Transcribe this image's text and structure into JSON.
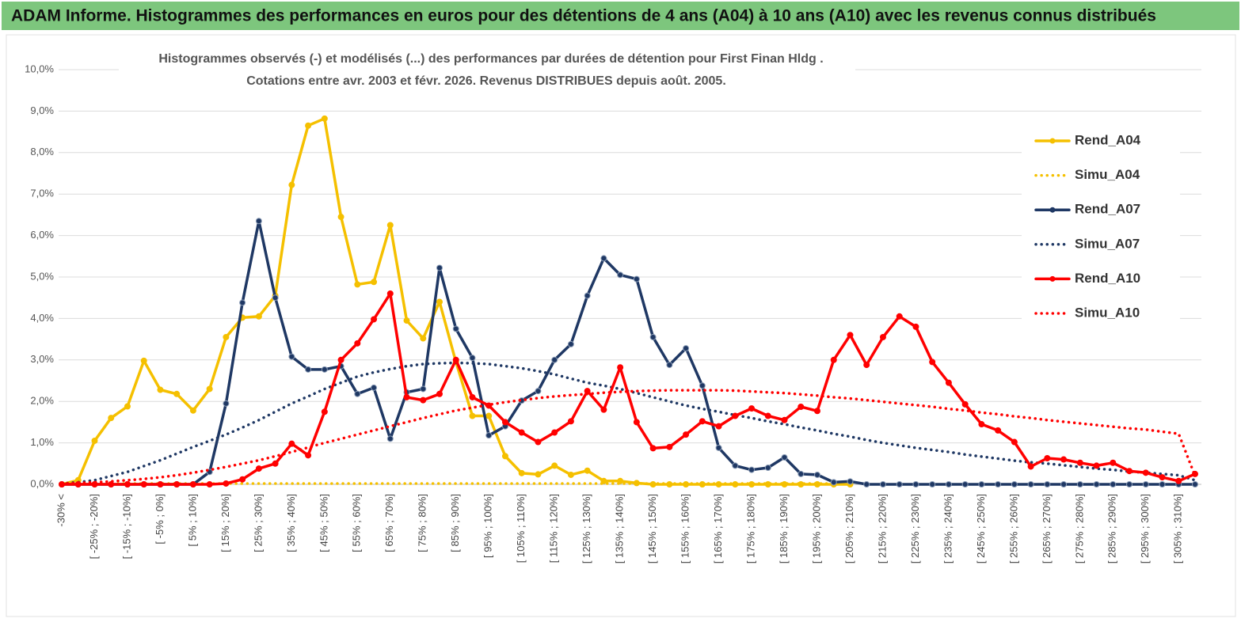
{
  "header": {
    "title": "ADAM Informe. Histogrammes des performances en euros pour des détentions de 4 ans (A04) à 10 ans (A10) avec les revenus connus distribués"
  },
  "chart_data": {
    "type": "line",
    "title": "Histogrammes observés (-) et modélisés (...) des performances par durées de détention pour First Finan Hldg .",
    "subtitle": "Cotations entre avr. 2003 et févr. 2026. Revenus DISTRIBUES depuis août. 2005.",
    "categories": [
      "-30% <",
      null,
      "[ -25% ; -20%]",
      null,
      "[ -15% ; -10%]",
      null,
      "[ -5% ; 0%]",
      null,
      "[ 5% ; 10%]",
      null,
      "[ 15% ; 20%]",
      null,
      "[ 25% ; 30%]",
      null,
      "[ 35% ; 40%]",
      null,
      "[ 45% ; 50%]",
      null,
      "[ 55% ; 60%]",
      null,
      "[ 65% ; 70%]",
      null,
      "[ 75% ; 80%]",
      null,
      "[ 85% ; 90%]",
      null,
      "[ 95% ; 100%]",
      null,
      "[ 105% ; 110%]",
      null,
      "[ 115% ; 120%]",
      null,
      "[ 125% ; 130%]",
      null,
      "[ 135% ; 140%]",
      null,
      "[ 145% ; 150%]",
      null,
      "[ 155% ; 160%]",
      null,
      "[ 165% ; 170%]",
      null,
      "[ 175% ; 180%]",
      null,
      "[ 185% ; 190%]",
      null,
      "[ 195% ; 200%]",
      null,
      "[ 205% ; 210%]",
      null,
      "[ 215% ; 220%]",
      null,
      "[ 225% ; 230%]",
      null,
      "[ 235% ; 240%]",
      null,
      "[ 245% ; 250%]",
      null,
      "[ 255% ; 260%]",
      null,
      "[ 265% ; 270%]",
      null,
      "[ 275% ; 280%]",
      null,
      "[ 285% ; 290%]",
      null,
      "[ 295% ; 300%]",
      null,
      "[ 305% ; 310%]",
      null
    ],
    "series": [
      {
        "name": "Rend_A04",
        "color": "#f5c000",
        "style": "solid",
        "markers": true,
        "values": [
          0,
          0.1,
          1.05,
          1.6,
          1.88,
          2.98,
          2.28,
          2.18,
          1.78,
          2.3,
          3.55,
          4.02,
          4.05,
          4.55,
          7.22,
          8.65,
          8.82,
          6.45,
          4.82,
          4.88,
          6.25,
          3.95,
          3.52,
          4.4,
          2.95,
          1.65,
          1.65,
          0.68,
          0.27,
          0.24,
          0.45,
          0.23,
          0.33,
          0.08,
          0.08,
          0.03,
          0,
          0,
          0,
          0,
          0,
          0,
          0,
          0,
          0,
          0,
          0,
          0,
          0,
          null,
          null,
          null,
          null,
          null,
          null,
          null,
          null,
          null,
          null,
          null,
          null,
          null,
          null,
          null,
          null,
          null,
          null,
          null,
          null,
          null
        ]
      },
      {
        "name": "Simu_A04",
        "color": "#f5c000",
        "style": "dotted",
        "markers": false,
        "values": [
          0.02,
          0.02,
          0.02,
          0.02,
          0.02,
          0.02,
          0.02,
          0.02,
          0.02,
          0.02,
          0.02,
          0.02,
          0.02,
          0.02,
          0.02,
          0.02,
          0.02,
          0.02,
          0.02,
          0.02,
          0.02,
          0.02,
          0.02,
          0.02,
          0.02,
          0.02,
          0.02,
          0.02,
          0.02,
          0.02,
          0.02,
          0.02,
          0.02,
          0.02,
          0.02,
          0.02,
          0.02,
          0.02,
          0.02,
          0.02,
          0.02,
          0.02,
          0.02,
          0.02,
          0.02,
          0.02,
          0.02,
          0.02,
          0.02,
          null,
          null,
          null,
          null,
          null,
          null,
          null,
          null,
          null,
          null,
          null,
          null,
          null,
          null,
          null,
          null,
          null,
          null,
          null,
          null,
          null
        ]
      },
      {
        "name": "Rend_A07",
        "color": "#1f3864",
        "style": "solid",
        "markers": true,
        "values": [
          0,
          0,
          0,
          0,
          0,
          0,
          0,
          0,
          0,
          0.3,
          1.95,
          4.38,
          6.35,
          4.5,
          3.08,
          2.77,
          2.77,
          2.85,
          2.18,
          2.33,
          1.1,
          2.22,
          2.3,
          5.22,
          3.75,
          3.05,
          1.18,
          1.4,
          2.02,
          2.25,
          3.0,
          3.38,
          4.55,
          5.45,
          5.05,
          4.95,
          3.55,
          2.88,
          3.28,
          2.38,
          0.88,
          0.45,
          0.35,
          0.4,
          0.65,
          0.25,
          0.23,
          0.05,
          0.07,
          0,
          0,
          0,
          0,
          0,
          0,
          0,
          0,
          0,
          0,
          0,
          0,
          0,
          0,
          0,
          0,
          0,
          0,
          0,
          0,
          0
        ]
      },
      {
        "name": "Simu_A07",
        "color": "#1f3864",
        "style": "dotted",
        "markers": false,
        "values": [
          0.02,
          0.05,
          0.1,
          0.2,
          0.3,
          0.44,
          0.58,
          0.74,
          0.9,
          1.05,
          1.2,
          1.37,
          1.55,
          1.75,
          1.95,
          2.12,
          2.3,
          2.45,
          2.6,
          2.7,
          2.78,
          2.85,
          2.9,
          2.92,
          2.93,
          2.92,
          2.9,
          2.85,
          2.8,
          2.73,
          2.65,
          2.55,
          2.45,
          2.38,
          2.3,
          2.2,
          2.1,
          2.0,
          1.9,
          1.82,
          1.75,
          1.67,
          1.6,
          1.52,
          1.45,
          1.37,
          1.3,
          1.22,
          1.15,
          1.07,
          1.0,
          0.94,
          0.88,
          0.83,
          0.78,
          0.72,
          0.67,
          0.62,
          0.57,
          0.53,
          0.5,
          0.46,
          0.42,
          0.38,
          0.35,
          0.31,
          0.28,
          0.25,
          0.22,
          0.1
        ]
      },
      {
        "name": "Rend_A10",
        "color": "#ff0000",
        "style": "solid",
        "markers": true,
        "values": [
          0,
          0,
          0,
          0,
          0,
          0,
          0,
          0,
          0,
          0,
          0.02,
          0.12,
          0.38,
          0.5,
          0.98,
          0.7,
          1.75,
          3.0,
          3.4,
          3.98,
          4.6,
          2.1,
          2.03,
          2.18,
          3.0,
          2.1,
          1.9,
          1.5,
          1.25,
          1.02,
          1.25,
          1.52,
          2.25,
          1.8,
          2.82,
          1.5,
          0.87,
          0.9,
          1.2,
          1.52,
          1.4,
          1.65,
          1.83,
          1.65,
          1.55,
          1.87,
          1.77,
          3.0,
          3.6,
          2.88,
          3.55,
          4.05,
          3.8,
          2.95,
          2.45,
          1.93,
          1.45,
          1.3,
          1.02,
          0.43,
          0.63,
          0.6,
          0.52,
          0.45,
          0.52,
          0.32,
          0.28,
          0.17,
          0.08,
          0.25
        ]
      },
      {
        "name": "Simu_A10",
        "color": "#ff0000",
        "style": "dotted",
        "markers": false,
        "values": [
          0.02,
          0.03,
          0.05,
          0.07,
          0.1,
          0.13,
          0.17,
          0.22,
          0.28,
          0.35,
          0.42,
          0.5,
          0.58,
          0.68,
          0.78,
          0.89,
          1.0,
          1.1,
          1.2,
          1.3,
          1.4,
          1.5,
          1.6,
          1.69,
          1.78,
          1.85,
          1.92,
          1.98,
          2.03,
          2.08,
          2.12,
          2.15,
          2.18,
          2.21,
          2.23,
          2.25,
          2.26,
          2.27,
          2.27,
          2.27,
          2.27,
          2.26,
          2.24,
          2.22,
          2.2,
          2.17,
          2.14,
          2.1,
          2.07,
          2.03,
          1.99,
          1.95,
          1.91,
          1.87,
          1.82,
          1.78,
          1.73,
          1.69,
          1.64,
          1.6,
          1.55,
          1.51,
          1.47,
          1.43,
          1.39,
          1.35,
          1.32,
          1.27,
          1.22,
          0.2
        ]
      }
    ],
    "ylim": [
      0,
      10
    ],
    "yticks": [
      {
        "value": 0,
        "label": "0,0%"
      },
      {
        "value": 1,
        "label": "1,0%"
      },
      {
        "value": 2,
        "label": "2,0%"
      },
      {
        "value": 3,
        "label": "3,0%"
      },
      {
        "value": 4,
        "label": "4,0%"
      },
      {
        "value": 5,
        "label": "5,0%"
      },
      {
        "value": 6,
        "label": "6,0%"
      },
      {
        "value": 7,
        "label": "7,0%"
      },
      {
        "value": 8,
        "label": "8,0%"
      },
      {
        "value": 9,
        "label": "9,0%"
      },
      {
        "value": 10,
        "label": "10,0%"
      }
    ],
    "grid": true,
    "legend": "right"
  }
}
